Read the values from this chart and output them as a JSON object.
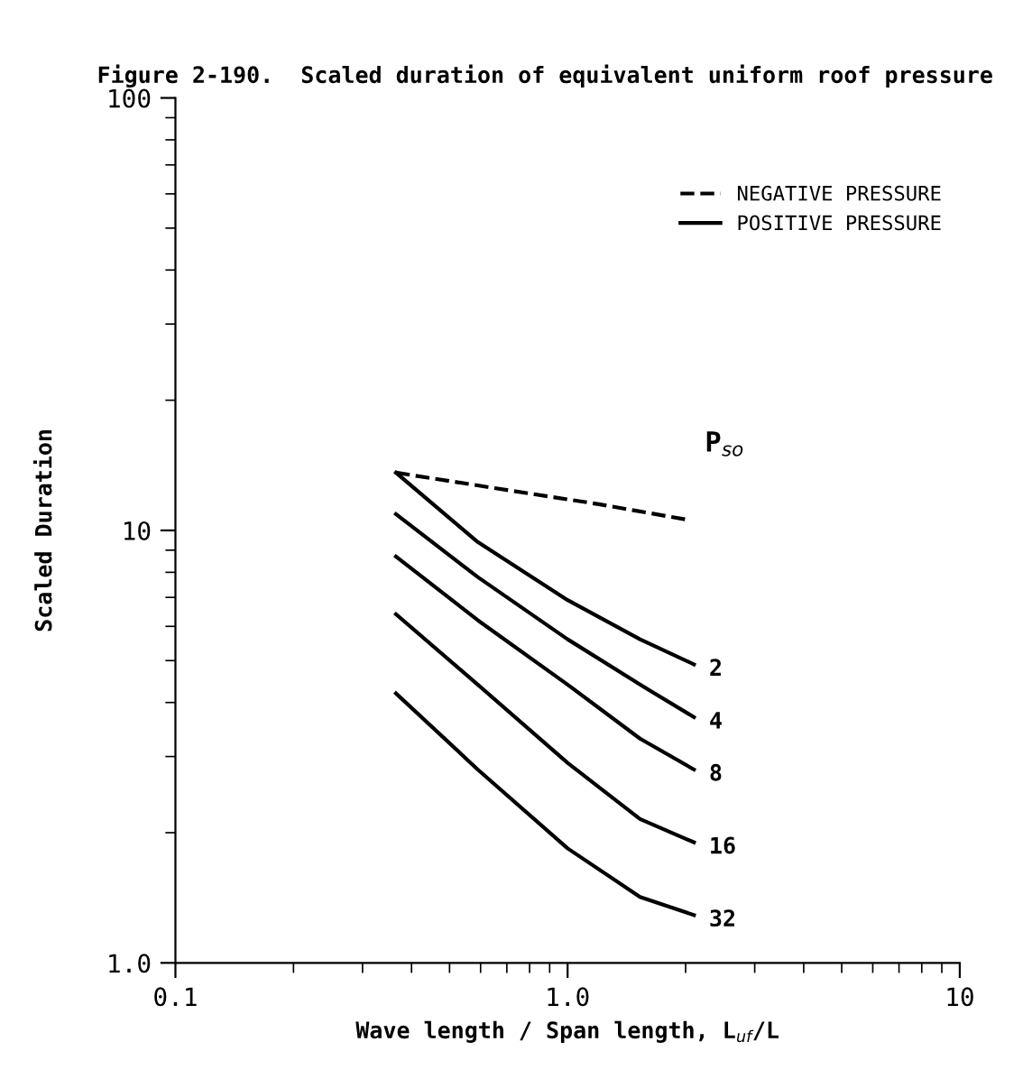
{
  "chart_data": {
    "type": "line",
    "title": "Figure 2-190.  Scaled duration of equivalent uniform roof pressure",
    "xlabel": "Wave length / Span length, L$_{uf}$/L",
    "ylabel": "Scaled Duration",
    "log": "xy",
    "xlim": [
      0.1,
      10
    ],
    "ylim": [
      1.0,
      100
    ],
    "xticks": [
      {
        "value": 0.1,
        "label": "0.1"
      },
      {
        "value": 1.0,
        "label": "1.0"
      },
      {
        "value": 10,
        "label": "10"
      }
    ],
    "yticks": [
      {
        "value": 1.0,
        "label": "1.0"
      },
      {
        "value": 10,
        "label": "10"
      },
      {
        "value": 100,
        "label": "100"
      }
    ],
    "x": [
      0.365,
      0.59,
      1.0,
      1.53,
      2.1
    ],
    "series": [
      {
        "name": "NEGATIVE PRESSURE",
        "line_style": "dashed",
        "color": "#000000",
        "x": [
          0.365,
          0.7,
          1.2,
          2.0
        ],
        "values": [
          13.6,
          12.4,
          11.5,
          10.6
        ]
      },
      {
        "name": "2",
        "line_style": "solid",
        "color": "#000000",
        "values": [
          13.6,
          9.4,
          6.9,
          5.6,
          4.9
        ]
      },
      {
        "name": "4",
        "line_style": "solid",
        "color": "#000000",
        "values": [
          10.9,
          7.8,
          5.6,
          4.4,
          3.7
        ]
      },
      {
        "name": "8",
        "line_style": "solid",
        "color": "#000000",
        "values": [
          8.7,
          6.2,
          4.4,
          3.3,
          2.8
        ]
      },
      {
        "name": "16",
        "line_style": "solid",
        "color": "#000000",
        "values": [
          6.4,
          4.4,
          2.9,
          2.15,
          1.9
        ]
      },
      {
        "name": "32",
        "line_style": "solid",
        "color": "#000000",
        "values": [
          4.2,
          2.8,
          1.84,
          1.42,
          1.29
        ]
      }
    ],
    "annotations": [
      "POSITIVE PRESSURE",
      "P$_{so}$"
    ],
    "legend": "top right",
    "grid": false,
    "marker": "none"
  }
}
